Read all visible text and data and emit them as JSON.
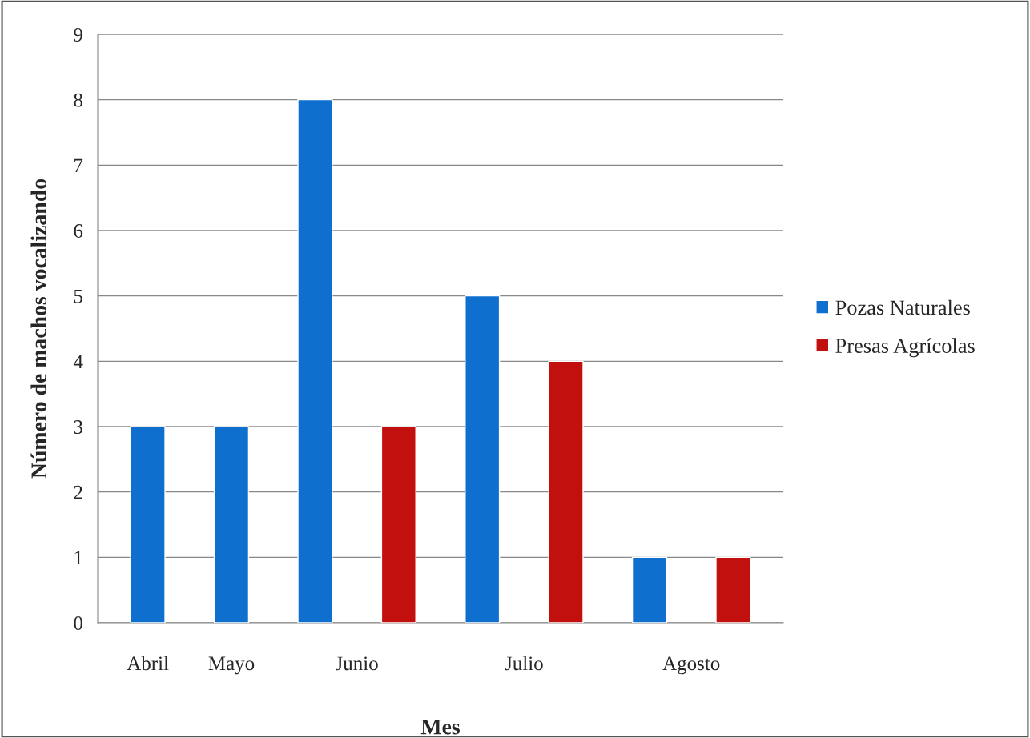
{
  "chart_data": {
    "type": "bar",
    "xlabel": "Mes",
    "ylabel": "Número de machos vocalizando",
    "categories": [
      "Abril",
      "Mayo",
      "Junio",
      "Julio",
      "Agosto"
    ],
    "series": [
      {
        "name": "Pozas Naturales",
        "color": "#0f6fce",
        "values": [
          3,
          3,
          8,
          5,
          1
        ]
      },
      {
        "name": "Presas Agrícolas",
        "color": "#c2100f",
        "values": [
          null,
          null,
          3,
          4,
          1
        ]
      }
    ],
    "ylim": [
      0,
      9
    ],
    "yticks": [
      0,
      1,
      2,
      3,
      4,
      5,
      6,
      7,
      8,
      9
    ],
    "grid": "y",
    "legend": "right"
  }
}
